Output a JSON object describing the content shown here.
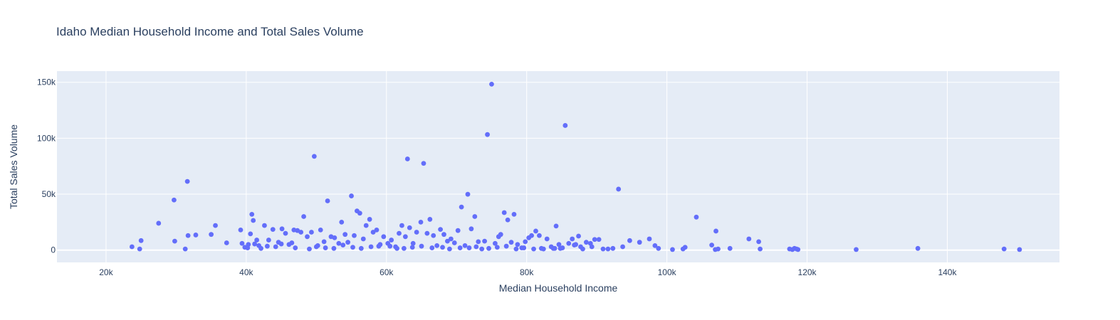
{
  "chart_data": {
    "type": "scatter",
    "title": "Idaho Median Household Income and Total Sales Volume",
    "xlabel": "Median Household Income",
    "ylabel": "Total Sales Volume",
    "xlim": [
      13000,
      156000
    ],
    "ylim": [
      -11000,
      160000
    ],
    "xticks": [
      20000,
      40000,
      60000,
      80000,
      100000,
      120000,
      140000
    ],
    "xtick_labels": [
      "20k",
      "40k",
      "60k",
      "80k",
      "100k",
      "120k",
      "140k"
    ],
    "yticks": [
      0,
      50000,
      100000,
      150000
    ],
    "ytick_labels": [
      "0",
      "50k",
      "100k",
      "150k"
    ],
    "grid": true,
    "colors": {
      "marker": "#636efa",
      "plot_bg": "#e5ecf6",
      "grid": "#ffffff",
      "text": "#2a3f5f"
    },
    "series": [
      {
        "x": [
          23700,
          24800,
          25000,
          27500,
          29700,
          29800,
          31300,
          31600,
          31700,
          32800,
          35000,
          35600,
          37200,
          39200,
          39400,
          39800,
          40300,
          40600,
          40800,
          41000,
          41200,
          41800,
          42100,
          42600,
          43200,
          43800,
          44200,
          44600,
          45100,
          45600,
          46100,
          46800,
          47300,
          47800,
          48200,
          48700,
          49300,
          49700,
          50200,
          50600,
          51100,
          51600,
          52100,
          52600,
          53200,
          53600,
          54100,
          54500,
          55000,
          55400,
          55800,
          56200,
          56700,
          57100,
          57600,
          58100,
          58600,
          59100,
          59600,
          60200,
          60700,
          61300,
          61800,
          62200,
          62700,
          63000,
          63300,
          63800,
          64300,
          64900,
          65300,
          65800,
          66200,
          66700,
          67200,
          67700,
          68200,
          68700,
          69200,
          69700,
          70200,
          70700,
          71200,
          71600,
          72100,
          72600,
          73100,
          73600,
          74000,
          74400,
          75000,
          75500,
          76000,
          76300,
          76800,
          77300,
          77800,
          78200,
          78700,
          79300,
          79800,
          80300,
          80700,
          81300,
          81800,
          82400,
          82900,
          83500,
          84000,
          84200,
          84600,
          85100,
          85500,
          86000,
          86500,
          87000,
          87400,
          88000,
          88500,
          89100,
          89700,
          90300,
          90900,
          91600,
          92300,
          93100,
          93700,
          94700,
          96100,
          97500,
          98300,
          98800,
          100800,
          102300,
          102600,
          104200,
          106400,
          106900,
          107000,
          107300,
          109000,
          111700,
          113100,
          113300,
          117500,
          117900,
          118200,
          118500,
          118700,
          127000,
          135800,
          148100,
          150300,
          40200,
          41500,
          43000,
          45000,
          47000,
          50000,
          52500,
          55200,
          57800,
          60500,
          62500,
          65000,
          68000,
          70500,
          72800,
          75800,
          78500,
          81000,
          83800,
          86800,
          89300,
          46500,
          49000,
          51300,
          53800,
          56400,
          58900,
          61500,
          63700,
          66500,
          69000,
          71800,
          74600,
          77100,
          79600,
          82100,
          84800,
          87700
        ],
        "y": [
          3000,
          1000,
          8500,
          24000,
          44800,
          8000,
          1000,
          61400,
          13000,
          13500,
          14000,
          22000,
          6500,
          18000,
          6000,
          2500,
          5000,
          14500,
          32000,
          26500,
          5500,
          4000,
          1500,
          22000,
          9000,
          18500,
          3000,
          7000,
          19000,
          15000,
          5000,
          18000,
          17500,
          16000,
          30000,
          12000,
          16000,
          83800,
          4000,
          18000,
          7500,
          44000,
          12000,
          11000,
          6000,
          25000,
          14000,
          7000,
          48400,
          13000,
          35000,
          33000,
          10000,
          22000,
          27500,
          16000,
          18000,
          5000,
          12000,
          6000,
          9000,
          3000,
          15000,
          22000,
          12000,
          81500,
          20000,
          6000,
          16000,
          25000,
          77500,
          15000,
          27500,
          13000,
          4000,
          18500,
          14000,
          8000,
          10000,
          6500,
          17500,
          38500,
          4000,
          49900,
          19000,
          30000,
          7500,
          1000,
          8000,
          103300,
          148300,
          6000,
          12000,
          14000,
          33500,
          27000,
          7000,
          32000,
          5000,
          2000,
          7500,
          11000,
          13000,
          17000,
          13000,
          1000,
          10000,
          3000,
          1500,
          21500,
          5000,
          2000,
          111400,
          6000,
          10000,
          5000,
          12500,
          1000,
          7000,
          6000,
          9500,
          9500,
          1000,
          1000,
          1500,
          54500,
          3000,
          8500,
          7000,
          10000,
          4000,
          1500,
          500,
          1000,
          2500,
          29500,
          4500,
          500,
          17000,
          1000,
          1500,
          10000,
          7500,
          1000,
          1000,
          500,
          1500,
          1000,
          500,
          500,
          1500,
          1000,
          500,
          2000,
          9000,
          3500,
          5500,
          2000,
          3000,
          1500,
          2500,
          3000,
          3500,
          1500,
          3500,
          2500,
          2000,
          3000,
          2500,
          1000,
          1000,
          1500,
          4500,
          3000,
          6500,
          1000,
          2000,
          4500,
          1500,
          3500,
          1500,
          2500,
          2000,
          1000,
          2000,
          1500,
          3500,
          2000,
          1500,
          1500,
          3000
        ]
      }
    ]
  }
}
